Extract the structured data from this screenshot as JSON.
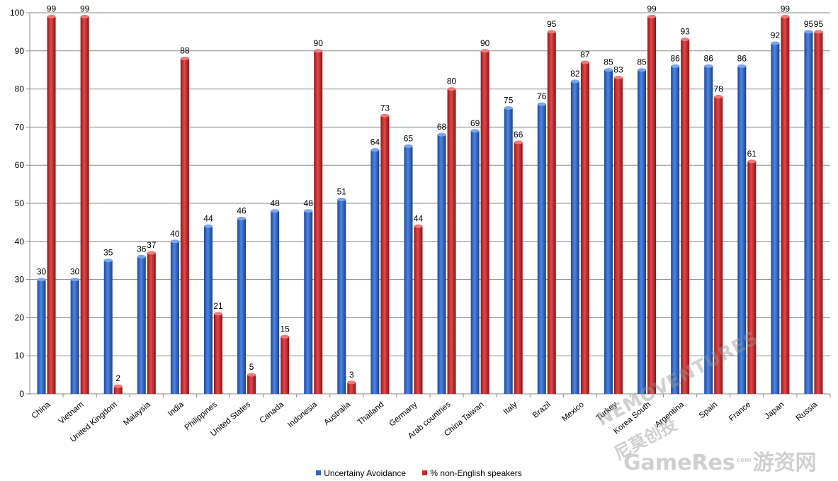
{
  "chart_data": {
    "type": "bar",
    "title": "",
    "xlabel": "",
    "ylabel": "",
    "ylim": [
      0,
      100
    ],
    "yticks": [
      0,
      10,
      20,
      30,
      40,
      50,
      60,
      70,
      80,
      90,
      100
    ],
    "grid": true,
    "legend_position": "bottom",
    "categories": [
      "China",
      "Vietnam",
      "United Kingdom",
      "Malaysia",
      "India",
      "Philippines",
      "United States",
      "Canada",
      "Indonesia",
      "Australia",
      "Thailand",
      "Germany",
      "Arab countries",
      "China Taiwan",
      "Italy",
      "Brazil",
      "Mexico",
      "Turkey",
      "Korea South",
      "Argentina",
      "Spain",
      "France",
      "Japan",
      "Russia"
    ],
    "series": [
      {
        "name": "Uncertainy Avoidance",
        "color": "#2f63c4",
        "values": [
          30,
          30,
          35,
          36,
          40,
          44,
          46,
          48,
          48,
          51,
          64,
          65,
          68,
          69,
          75,
          76,
          82,
          85,
          85,
          86,
          86,
          86,
          92,
          95
        ]
      },
      {
        "name": "% non-English speakers",
        "color": "#c8282a",
        "values": [
          99,
          99,
          2,
          37,
          88,
          21,
          5,
          15,
          90,
          3,
          73,
          44,
          80,
          90,
          66,
          95,
          87,
          83,
          99,
          93,
          78,
          61,
          99,
          95
        ]
      }
    ]
  },
  "watermark": {
    "brand": "NEMOVENTURES",
    "brand_cn": "尼莫创投",
    "site": "GameRes",
    "site_cn": "游资网",
    "site_small": "com"
  }
}
